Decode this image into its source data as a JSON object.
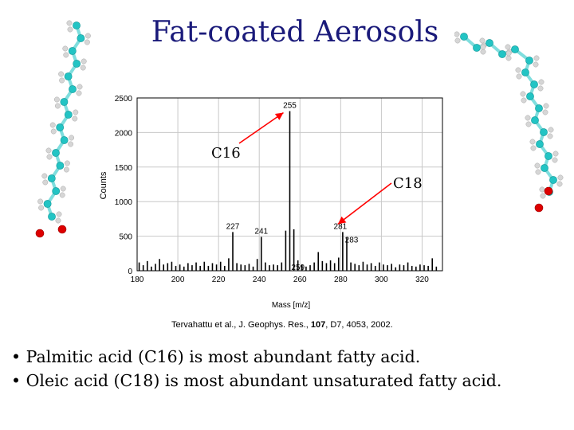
{
  "slide": {
    "title": "Fat-coated Aerosols",
    "citation": {
      "pre": "Tervahattu et al., J. Geophys. Res., ",
      "vol": "107",
      "post": ", D7, 4053, 2002."
    },
    "bullets": [
      "• Palmitic acid (C16) is most abundant fatty acid.",
      "• Oleic acid (C18) is most abundant unsaturated fatty acid."
    ],
    "colors": {
      "title": "#1a1a7a",
      "arrow": "#ff0000",
      "carbon": "#22c4c4",
      "oxygen": "#dd0000",
      "hydrogen": "#d6d6d6"
    },
    "molecule_icons": [
      "fatty-acid-chain-left-icon",
      "fatty-acid-chain-right-icon"
    ]
  },
  "chart_data": {
    "type": "bar",
    "xlabel": "Mass [m/z]",
    "ylabel": "Counts",
    "xlim": [
      180,
      330
    ],
    "ylim": [
      0,
      2500
    ],
    "xticks": [
      180,
      200,
      220,
      240,
      260,
      280,
      300,
      320
    ],
    "yticks": [
      0,
      500,
      1000,
      1500,
      2000,
      2500
    ],
    "peaks": [
      {
        "x": 181,
        "y": 120
      },
      {
        "x": 183,
        "y": 80
      },
      {
        "x": 185,
        "y": 140
      },
      {
        "x": 187,
        "y": 60
      },
      {
        "x": 189,
        "y": 100
      },
      {
        "x": 191,
        "y": 170
      },
      {
        "x": 193,
        "y": 90
      },
      {
        "x": 195,
        "y": 110
      },
      {
        "x": 197,
        "y": 130
      },
      {
        "x": 199,
        "y": 70
      },
      {
        "x": 201,
        "y": 90
      },
      {
        "x": 203,
        "y": 60
      },
      {
        "x": 205,
        "y": 110
      },
      {
        "x": 207,
        "y": 80
      },
      {
        "x": 209,
        "y": 120
      },
      {
        "x": 211,
        "y": 70
      },
      {
        "x": 213,
        "y": 130
      },
      {
        "x": 215,
        "y": 70
      },
      {
        "x": 217,
        "y": 110
      },
      {
        "x": 219,
        "y": 90
      },
      {
        "x": 221,
        "y": 130
      },
      {
        "x": 223,
        "y": 70
      },
      {
        "x": 225,
        "y": 180
      },
      {
        "x": 227,
        "y": 560
      },
      {
        "x": 229,
        "y": 110
      },
      {
        "x": 231,
        "y": 90
      },
      {
        "x": 233,
        "y": 80
      },
      {
        "x": 235,
        "y": 100
      },
      {
        "x": 237,
        "y": 60
      },
      {
        "x": 239,
        "y": 170
      },
      {
        "x": 241,
        "y": 490
      },
      {
        "x": 243,
        "y": 120
      },
      {
        "x": 245,
        "y": 80
      },
      {
        "x": 247,
        "y": 90
      },
      {
        "x": 249,
        "y": 80
      },
      {
        "x": 251,
        "y": 120
      },
      {
        "x": 253,
        "y": 580
      },
      {
        "x": 255,
        "y": 2310
      },
      {
        "x": 257,
        "y": 600
      },
      {
        "x": 259,
        "y": 150
      },
      {
        "x": 261,
        "y": 90
      },
      {
        "x": 263,
        "y": 60
      },
      {
        "x": 265,
        "y": 80
      },
      {
        "x": 267,
        "y": 120
      },
      {
        "x": 269,
        "y": 270
      },
      {
        "x": 271,
        "y": 140
      },
      {
        "x": 273,
        "y": 110
      },
      {
        "x": 275,
        "y": 150
      },
      {
        "x": 277,
        "y": 110
      },
      {
        "x": 279,
        "y": 190
      },
      {
        "x": 281,
        "y": 560
      },
      {
        "x": 283,
        "y": 480
      },
      {
        "x": 285,
        "y": 120
      },
      {
        "x": 287,
        "y": 100
      },
      {
        "x": 289,
        "y": 80
      },
      {
        "x": 291,
        "y": 130
      },
      {
        "x": 293,
        "y": 90
      },
      {
        "x": 295,
        "y": 110
      },
      {
        "x": 297,
        "y": 70
      },
      {
        "x": 299,
        "y": 120
      },
      {
        "x": 301,
        "y": 90
      },
      {
        "x": 303,
        "y": 80
      },
      {
        "x": 305,
        "y": 100
      },
      {
        "x": 307,
        "y": 50
      },
      {
        "x": 309,
        "y": 90
      },
      {
        "x": 311,
        "y": 80
      },
      {
        "x": 313,
        "y": 120
      },
      {
        "x": 315,
        "y": 70
      },
      {
        "x": 317,
        "y": 60
      },
      {
        "x": 319,
        "y": 90
      },
      {
        "x": 321,
        "y": 80
      },
      {
        "x": 323,
        "y": 70
      },
      {
        "x": 325,
        "y": 180
      },
      {
        "x": 327,
        "y": 60
      }
    ],
    "peak_labels": [
      {
        "x": 255,
        "y": 2310,
        "label": "255"
      },
      {
        "x": 227,
        "y": 560,
        "label": "227"
      },
      {
        "x": 241,
        "y": 490,
        "label": "241"
      },
      {
        "x": 259,
        "y": 150,
        "label": "259"
      },
      {
        "x": 281,
        "y": 560,
        "label": "281"
      },
      {
        "x": 283,
        "y": 480,
        "label": "283"
      }
    ],
    "annotations": [
      {
        "text": "C16",
        "target_x": 255,
        "target_y": 2310
      },
      {
        "text": "C18",
        "target_x": 281,
        "target_y": 560
      }
    ],
    "grid": true
  }
}
